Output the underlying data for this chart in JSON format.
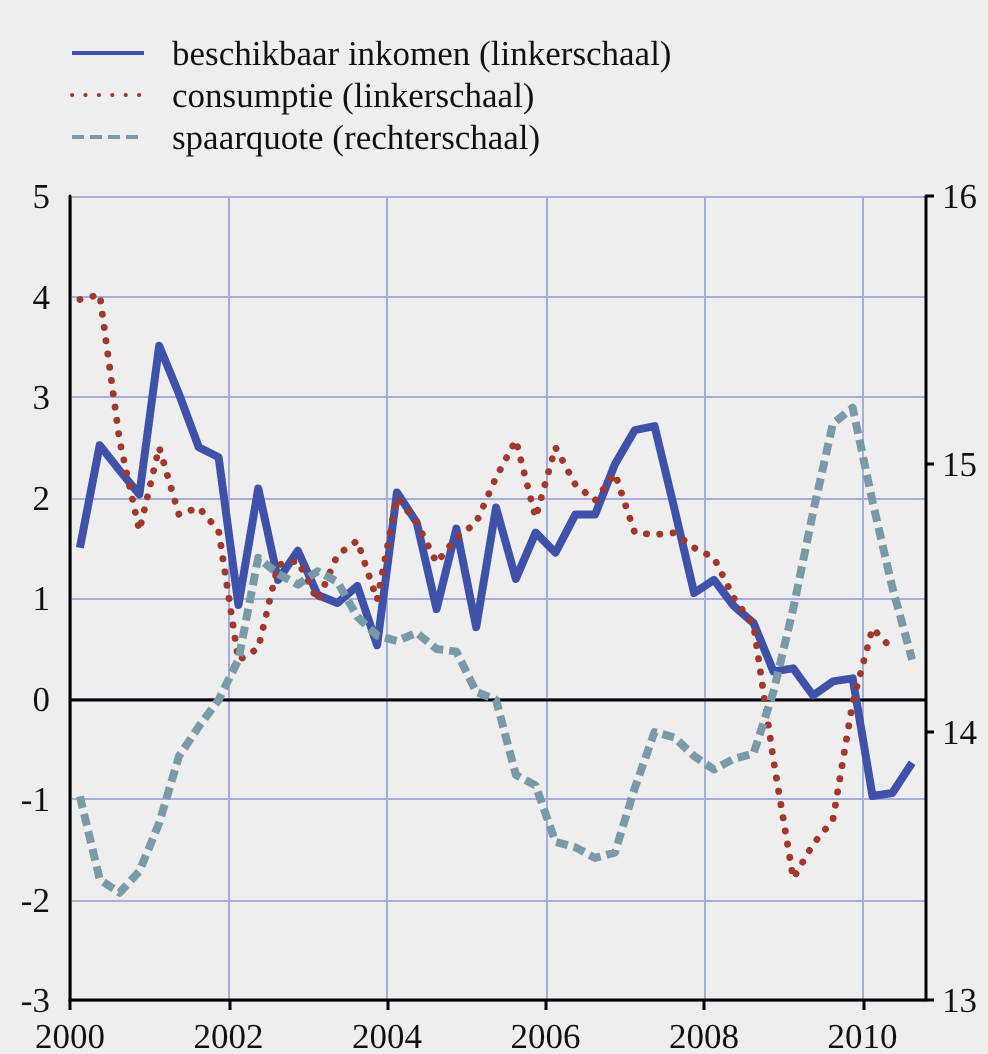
{
  "chart_data": {
    "type": "line",
    "x": [
      2000.125,
      2000.375,
      2000.625,
      2000.875,
      2001.125,
      2001.375,
      2001.625,
      2001.875,
      2002.125,
      2002.375,
      2002.625,
      2002.875,
      2003.125,
      2003.375,
      2003.625,
      2003.875,
      2004.125,
      2004.375,
      2004.625,
      2004.875,
      2005.125,
      2005.375,
      2005.625,
      2005.875,
      2006.125,
      2006.375,
      2006.625,
      2006.875,
      2007.125,
      2007.375,
      2007.625,
      2007.875,
      2008.125,
      2008.375,
      2008.625,
      2008.875,
      2009.125,
      2009.375,
      2009.625,
      2009.875,
      2010.125,
      2010.375,
      2010.625
    ],
    "series": [
      {
        "name": "beschikbaar inkomen (linkerschaal)",
        "color": "#3f51a8",
        "line_style": "solid",
        "values": [
          1.5,
          2.52,
          2.27,
          2.03,
          3.51,
          3.03,
          2.5,
          2.4,
          0.93,
          2.09,
          1.18,
          1.47,
          1.03,
          0.95,
          1.12,
          0.53,
          2.05,
          1.75,
          0.89,
          1.69,
          0.71,
          1.9,
          1.19,
          1.65,
          1.45,
          1.83,
          1.83,
          2.33,
          2.67,
          2.71,
          1.89,
          1.05,
          1.18,
          0.92,
          0.75,
          0.27,
          0.3,
          0.03,
          0.17,
          0.2,
          -0.97,
          -0.94,
          -0.64
        ]
      },
      {
        "name": "consumptie (linkerschaal)",
        "color": "#a0392d",
        "line_style": "dotted",
        "values": [
          3.97,
          4.02,
          2.57,
          1.67,
          2.5,
          1.83,
          1.9,
          1.67,
          0.38,
          0.5,
          1.33,
          1.37,
          0.97,
          1.43,
          1.57,
          0.98,
          2.0,
          1.75,
          1.35,
          1.6,
          1.75,
          2.2,
          2.57,
          1.8,
          2.5,
          2.13,
          1.97,
          2.24,
          1.65,
          1.63,
          1.65,
          1.5,
          1.4,
          1.0,
          0.73,
          -0.61,
          -1.79,
          -1.45,
          -1.21,
          -0.04,
          0.7,
          0.49,
          null
        ]
      },
      {
        "name": "spaarquote (rechterschaal)",
        "color": "#7b9aa8",
        "line_style": "dashed",
        "axis": "y2",
        "values": [
          13.76,
          13.45,
          13.4,
          13.48,
          13.66,
          13.91,
          14.02,
          14.12,
          14.27,
          14.65,
          14.59,
          14.55,
          14.6,
          14.56,
          14.43,
          14.36,
          14.34,
          14.37,
          14.31,
          14.3,
          14.15,
          14.12,
          13.84,
          13.8,
          13.59,
          13.57,
          13.53,
          13.55,
          13.79,
          14.0,
          13.98,
          13.91,
          13.86,
          13.9,
          13.92,
          14.15,
          14.46,
          14.82,
          15.15,
          15.21,
          14.86,
          14.54,
          14.27
        ]
      }
    ],
    "xlim": [
      2000,
      2010.8
    ],
    "xticks": [
      2000,
      2002,
      2004,
      2006,
      2008,
      2010
    ],
    "ylim": [
      -3,
      5
    ],
    "yticks": [
      -3,
      -2,
      -1,
      0,
      1,
      2,
      3,
      4,
      5
    ],
    "y2lim": [
      13,
      16
    ],
    "y2ticks": [
      13,
      14,
      15,
      16
    ],
    "ref_lines": [
      {
        "axis": "y",
        "value": 0,
        "color": "#000000"
      }
    ],
    "grid": true,
    "legend": "top left",
    "marker": "none"
  }
}
